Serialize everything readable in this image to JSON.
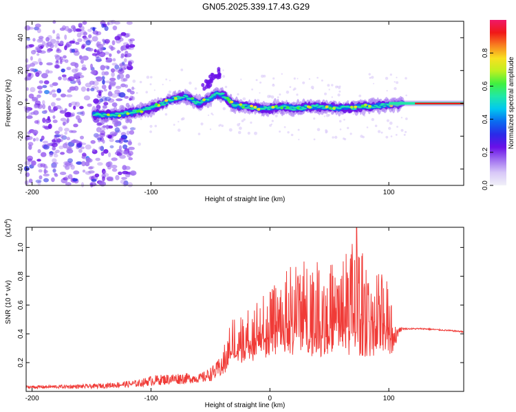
{
  "title": "GN05.2025.339.17.43.G29",
  "colors": {
    "snr_line": "#f03b37",
    "cmap": [
      "#f0f0f8",
      "#d8c8f8",
      "#a070f0",
      "#6a10e8",
      "#2a2ae8",
      "#0a6af0",
      "#00c8f0",
      "#20e8a8",
      "#40f040",
      "#c0f020",
      "#f8e020",
      "#f88020",
      "#f01818",
      "#f01868"
    ]
  },
  "chart_data": [
    {
      "type": "heatmap",
      "title": "GN05.2025.339.17.43.G29",
      "xlabel": "Height of straight line (km)",
      "ylabel": "Frequency (Hz)",
      "xlim": [
        -205,
        163
      ],
      "ylim": [
        -50,
        50
      ],
      "xticks": [
        -200,
        -100,
        100
      ],
      "yticks": [
        -40,
        -20,
        0,
        20,
        40
      ],
      "ridge": {
        "x": [
          -145,
          -130,
          -120,
          -110,
          -100,
          -90,
          -80,
          -70,
          -60,
          -50,
          -45,
          -40,
          -35,
          -30,
          -20,
          -10,
          0,
          10,
          20,
          40,
          60,
          80,
          100,
          110,
          120,
          130,
          140,
          150,
          160
        ],
        "freq": [
          -7,
          -7,
          -6,
          -5,
          -3,
          0,
          3,
          4,
          0,
          3,
          6,
          5,
          2,
          -1,
          -2,
          -3,
          -3,
          -2,
          -3,
          -2,
          -3,
          -2,
          -1,
          0,
          0,
          0,
          0,
          0,
          0
        ]
      },
      "colorbar": {
        "label": "Normalized spectral amplitude",
        "range": [
          0,
          1
        ],
        "ticks": [
          "0.0",
          "0.2",
          "0.4",
          "0.6",
          "0.8"
        ]
      }
    },
    {
      "type": "line",
      "title": "",
      "xlabel": "Height of straight line (km)",
      "ylabel": "SNR (10 * v/v)",
      "scale_note": "(x10",
      "scale_exp": "4",
      "xlim": [
        -205,
        163
      ],
      "ylim": [
        0,
        1.14
      ],
      "xticks": [
        -200,
        -100,
        0,
        100
      ],
      "yticks": [
        "0.2",
        "0.4",
        "0.6",
        "0.8",
        "1.0"
      ],
      "envelope": {
        "x": [
          -205,
          -150,
          -110,
          -100,
          -75,
          -60,
          -55,
          -45,
          -40,
          -35,
          -30,
          -20,
          -10,
          0,
          10,
          20,
          30,
          40,
          50,
          60,
          70,
          80,
          90,
          100,
          105,
          108,
          112,
          130,
          163
        ],
        "base": [
          0.02,
          0.02,
          0.03,
          0.04,
          0.05,
          0.06,
          0.06,
          0.08,
          0.1,
          0.15,
          0.18,
          0.2,
          0.22,
          0.22,
          0.24,
          0.25,
          0.25,
          0.24,
          0.24,
          0.25,
          0.25,
          0.24,
          0.24,
          0.25,
          0.25,
          0.4,
          0.43,
          0.43,
          0.41
        ],
        "peak": [
          0.04,
          0.05,
          0.08,
          0.11,
          0.13,
          0.12,
          0.14,
          0.2,
          0.28,
          0.45,
          0.55,
          0.58,
          0.65,
          0.7,
          0.8,
          0.9,
          0.92,
          0.9,
          0.88,
          0.95,
          1.05,
          0.95,
          0.85,
          0.78,
          0.6,
          0.46,
          0.44,
          0.44,
          0.42
        ]
      },
      "max_value": 1.14
    }
  ]
}
